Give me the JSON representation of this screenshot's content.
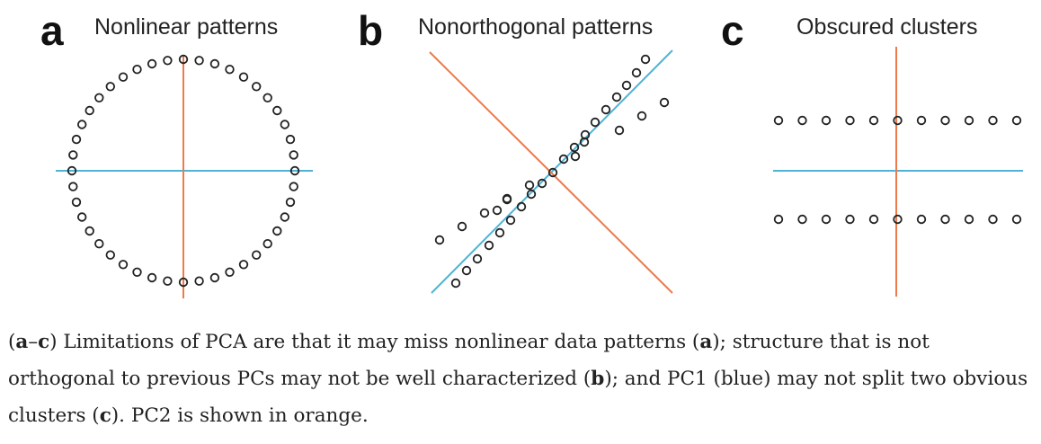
{
  "panels": [
    {
      "letter": "a",
      "title": "Nonlinear patterns"
    },
    {
      "letter": "b",
      "title": "Nonorthogonal patterns"
    },
    {
      "letter": "c",
      "title": "Obscured clusters"
    }
  ],
  "colors": {
    "pc1": "#4fb3d6",
    "pc2": "#ec7a4b",
    "points": "#222222"
  },
  "caption": {
    "open": "(",
    "a1": "a",
    "dash": "–",
    "c1": "c",
    "t1": ") Limitations of PCA are that it may miss nonlinear data patterns (",
    "a2": "a",
    "t2": "); structure that is not orthogonal to previous PCs may not be well characterized (",
    "b2": "b",
    "t3": "); and PC1 (blue) may not split two obvious clusters (",
    "c2": "c",
    "t4": "). PC2 is shown in orange."
  }
}
